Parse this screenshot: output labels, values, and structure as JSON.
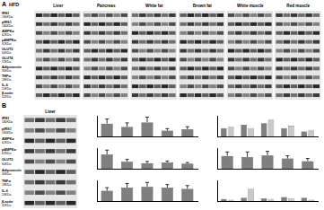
{
  "panels": {
    "A": {
      "label": "A",
      "condition": "HFD",
      "tissues": [
        "Liver",
        "Pancreas",
        "White fat",
        "Brown fat",
        "White muscle",
        "Red muscle"
      ],
      "proteins": [
        {
          "name": "IRS1",
          "size": "180KDa"
        },
        {
          "name": "pIRS1",
          "size": "180KDa"
        },
        {
          "name": "AMPKα",
          "size": "62KDa"
        },
        {
          "name": "pAMPKα",
          "size": "62KDa"
        },
        {
          "name": "GLUT2",
          "size": "60KDa"
        },
        {
          "name": "GLUT4",
          "size": "55KDa"
        },
        {
          "name": "Adiponectin",
          "size": "30KDa"
        },
        {
          "name": "TNFα",
          "size": "18KDa"
        },
        {
          "name": "IL-6",
          "size": "24KDa"
        },
        {
          "name": "β-actin",
          "size": "42KDa"
        }
      ]
    },
    "B": {
      "label": "B",
      "tissue": "Liver",
      "proteins": [
        {
          "name": "IRS1",
          "size": "180KDa"
        },
        {
          "name": "pIRS1",
          "size": "180KDa"
        },
        {
          "name": "AMPKα",
          "size": "62KDa"
        },
        {
          "name": "pAMPKα",
          "size": "62KDa"
        },
        {
          "name": "GLUT2",
          "size": "60KDa"
        },
        {
          "name": "Adiponectin",
          "size": "30KDa"
        },
        {
          "name": "TNFα",
          "size": "18KDa"
        },
        {
          "name": "IL-6",
          "size": "24KDa"
        },
        {
          "name": "β-actin",
          "size": "42KDa"
        }
      ]
    }
  },
  "chart_data": [
    {
      "type": "bar",
      "categories": [
        null,
        null,
        null,
        null,
        null
      ],
      "values": [
        1.0,
        0.75,
        1.1,
        0.45,
        0.55
      ],
      "errors": [
        0.35,
        0.3,
        0.4,
        0.15,
        0.2
      ],
      "color": "#7f7f7f",
      "ylim": [
        0,
        1.6
      ],
      "grid": false,
      "tick_labels": false
    },
    {
      "type": "bar",
      "categories": [
        null,
        null,
        null,
        null,
        null
      ],
      "series": [
        {
          "color": "#7f7f7f",
          "values": [
            1.0,
            1.4,
            1.6,
            1.0,
            0.6
          ]
        },
        {
          "color": "#c8c8c8",
          "values": [
            1.2,
            1.0,
            2.0,
            1.3,
            0.8
          ]
        }
      ],
      "ylim": [
        0,
        2.5
      ],
      "grid": false,
      "tick_labels": false
    },
    {
      "type": "bar",
      "categories": [
        null,
        null,
        null,
        null,
        null
      ],
      "values": [
        1.4,
        0.7,
        0.55,
        0.6,
        0.5
      ],
      "errors": [
        0.4,
        0.2,
        0.15,
        0.15,
        0.1
      ],
      "color": "#7f7f7f",
      "ylim": [
        0,
        2
      ],
      "grid": false,
      "tick_labels": false
    },
    {
      "type": "bar",
      "categories": [
        null,
        null,
        null,
        null,
        null
      ],
      "values": [
        1.0,
        0.9,
        1.05,
        0.8,
        0.6
      ],
      "errors": [
        0.3,
        0.4,
        0.3,
        0.2,
        0.2
      ],
      "color": "#7f7f7f",
      "ylim": [
        0,
        1.6
      ],
      "grid": false,
      "tick_labels": false
    },
    {
      "type": "bar",
      "categories": [
        null,
        null,
        null,
        null,
        null
      ],
      "values": [
        1.0,
        1.3,
        1.4,
        1.3,
        1.2
      ],
      "errors": [
        0.3,
        0.4,
        0.4,
        0.3,
        0.3
      ],
      "color": "#7f7f7f",
      "ylim": [
        0,
        2
      ],
      "grid": false,
      "tick_labels": false
    },
    {
      "type": "bar",
      "categories": [
        null,
        null,
        null,
        null,
        null
      ],
      "series": [
        {
          "color": "#7f7f7f",
          "values": [
            0.3,
            0.5,
            0.4,
            0.6,
            0.5
          ]
        },
        {
          "color": "#c8c8c8",
          "values": [
            0.2,
            1.8,
            0.3,
            0.4,
            0.2
          ]
        }
      ],
      "ylim": [
        0,
        3
      ],
      "grid": false,
      "tick_labels": false
    }
  ]
}
